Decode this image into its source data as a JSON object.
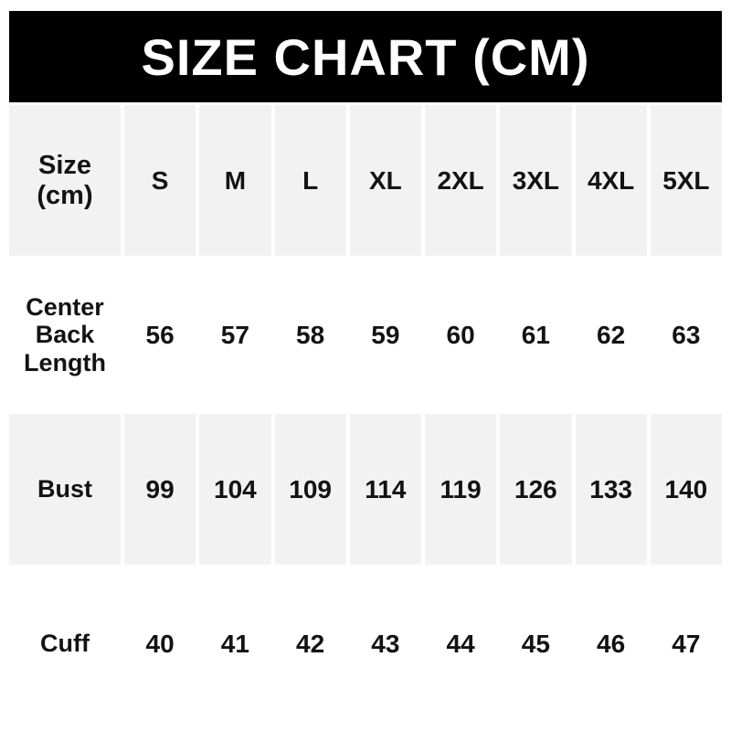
{
  "banner": {
    "title": "SIZE CHART (CM)",
    "background_color": "#000000",
    "text_color": "#ffffff"
  },
  "table": {
    "corner": {
      "line1": "Size",
      "line2": "(cm)"
    },
    "columns": [
      "S",
      "M",
      "L",
      "XL",
      "2XL",
      "3XL",
      "4XL",
      "5XL"
    ],
    "rows": [
      {
        "label": "Center Back Length",
        "values": [
          "56",
          "57",
          "58",
          "59",
          "60",
          "61",
          "62",
          "63"
        ]
      },
      {
        "label": "Bust",
        "values": [
          "99",
          "104",
          "109",
          "114",
          "119",
          "126",
          "133",
          "140"
        ]
      },
      {
        "label": "Cuff",
        "values": [
          "40",
          "41",
          "42",
          "43",
          "44",
          "45",
          "46",
          "47"
        ]
      }
    ],
    "stripe_color": "#f2f2f3",
    "text_color": "#131313"
  },
  "chart_data": {
    "type": "table",
    "title": "SIZE CHART (CM)",
    "columns": [
      "Size (cm)",
      "S",
      "M",
      "L",
      "XL",
      "2XL",
      "3XL",
      "4XL",
      "5XL"
    ],
    "rows": [
      [
        "Center Back Length",
        56,
        57,
        58,
        59,
        60,
        61,
        62,
        63
      ],
      [
        "Bust",
        99,
        104,
        109,
        114,
        119,
        126,
        133,
        140
      ],
      [
        "Cuff",
        40,
        41,
        42,
        43,
        44,
        45,
        46,
        47
      ]
    ],
    "layout": {
      "striped_rows": "header and Bust rows shaded light gray",
      "grid": "white gaps between cells, no borders"
    }
  }
}
